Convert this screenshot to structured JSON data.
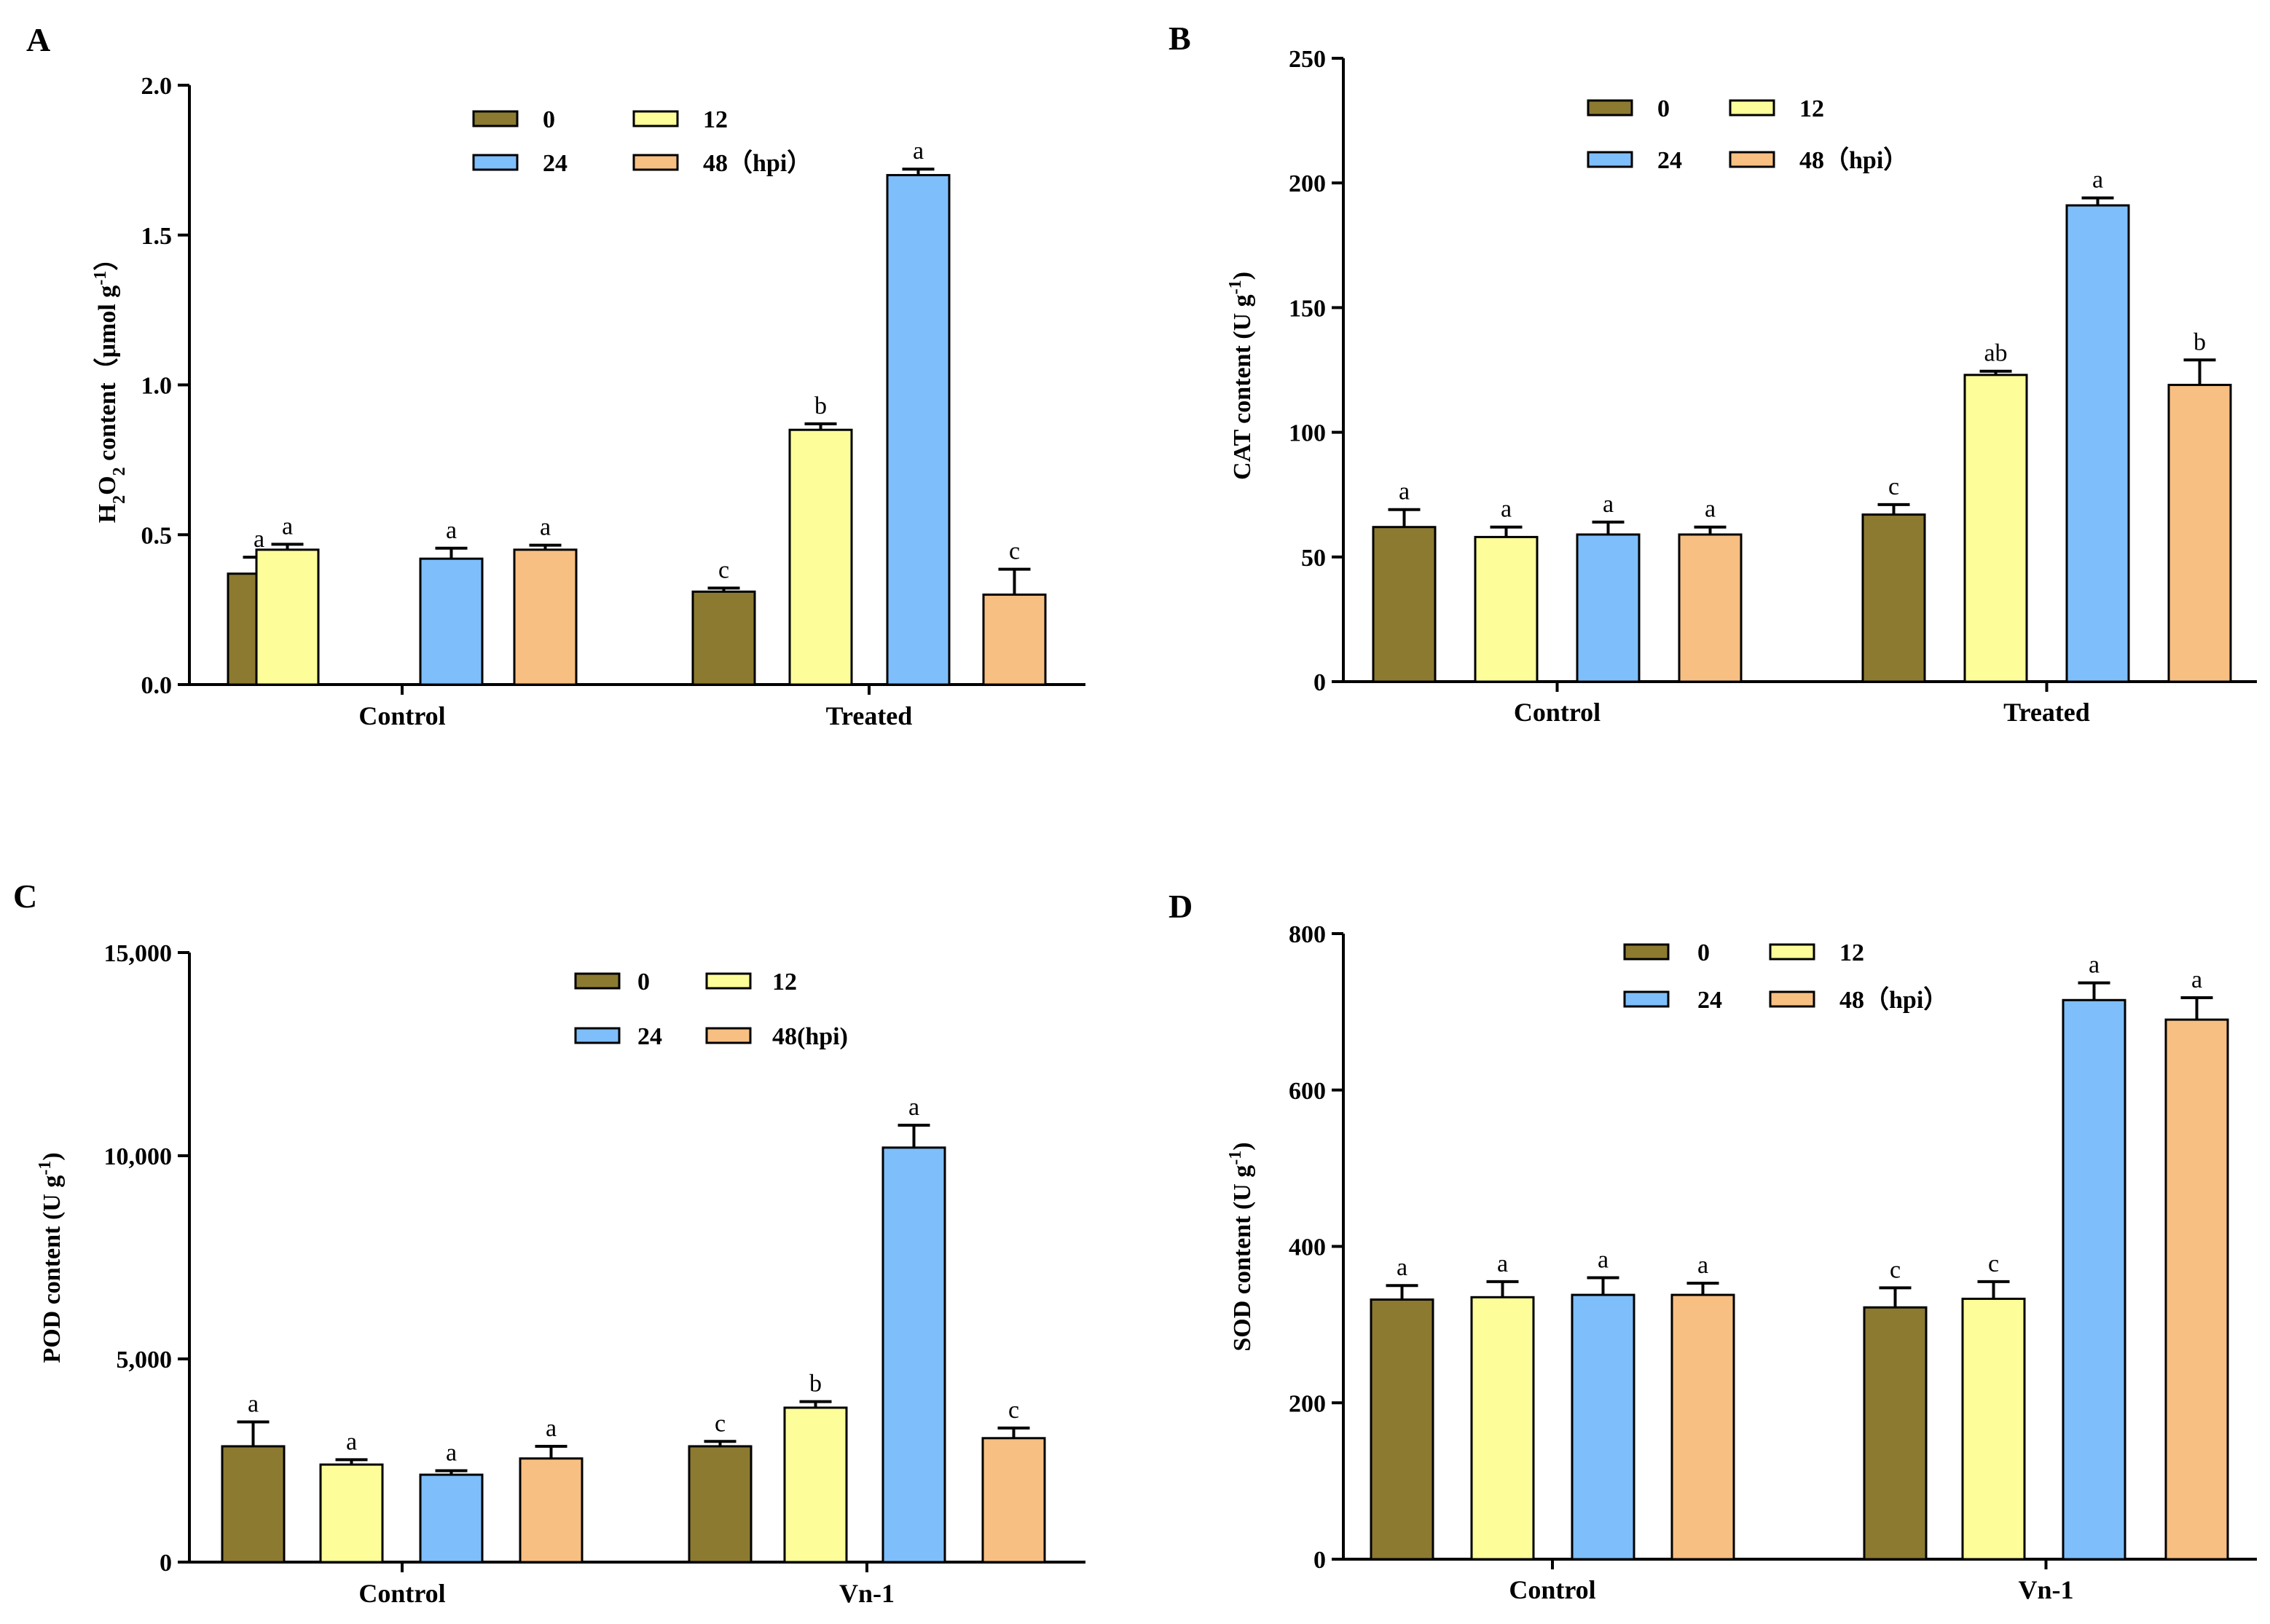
{
  "colors": {
    "0": "#8c7a30",
    "12": "#fdfd9a",
    "24": "#7ebefa",
    "48": "#f8bf82",
    "axis": "#000000"
  },
  "chart_data": [
    {
      "type": "bar",
      "panel": "A",
      "ylabel": {
        "prefix": "H",
        "sub": "2",
        "mid": "O",
        "sub2": "2",
        "main": " content（μmol g",
        "sup": "-1",
        "close": "）"
      },
      "ylim": [
        0,
        2.0
      ],
      "ytick_labels": [
        "0.0",
        "0.5",
        "1.0",
        "1.5",
        "2.0"
      ],
      "categories": [
        "Control",
        "Treated"
      ],
      "legend": [
        "0",
        "12",
        "24",
        "48（hpi）"
      ],
      "series": [
        {
          "name": "0",
          "values": [
            0.37,
            0.31
          ],
          "errors": [
            0.055,
            0.012
          ],
          "letters": [
            "a",
            "c"
          ]
        },
        {
          "name": "12",
          "values": [
            0.45,
            0.85
          ],
          "errors": [
            0.018,
            0.02
          ],
          "letters": [
            "a",
            "b"
          ]
        },
        {
          "name": "24",
          "values": [
            0.42,
            1.7
          ],
          "errors": [
            0.035,
            0.02
          ],
          "letters": [
            "a",
            "a"
          ]
        },
        {
          "name": "48",
          "values": [
            0.45,
            0.3
          ],
          "errors": [
            0.015,
            0.085
          ],
          "letters": [
            "a",
            "c"
          ]
        }
      ]
    },
    {
      "type": "bar",
      "panel": "B",
      "ylabel": {
        "main": "CAT content (U g",
        "sup": "-1",
        "close": ")"
      },
      "ylim": [
        0,
        250
      ],
      "ytick_labels": [
        "0",
        "50",
        "100",
        "150",
        "200",
        "250"
      ],
      "categories": [
        "Control",
        "Treated"
      ],
      "legend": [
        "0",
        "12",
        "24",
        "48（hpi）"
      ],
      "series": [
        {
          "name": "0",
          "values": [
            62,
            67
          ],
          "errors": [
            7,
            4
          ],
          "letters": [
            "a",
            "c"
          ]
        },
        {
          "name": "12",
          "values": [
            58,
            123
          ],
          "errors": [
            4,
            1.5
          ],
          "letters": [
            "a",
            "ab"
          ]
        },
        {
          "name": "24",
          "values": [
            59,
            191
          ],
          "errors": [
            5,
            3
          ],
          "letters": [
            "a",
            "a"
          ]
        },
        {
          "name": "48",
          "values": [
            59,
            119
          ],
          "errors": [
            3,
            10
          ],
          "letters": [
            "a",
            "b"
          ]
        }
      ]
    },
    {
      "type": "bar",
      "panel": "C",
      "ylabel": {
        "main": "POD content (U g",
        "sup": "-1",
        "close": ")"
      },
      "ylim": [
        0,
        15000
      ],
      "ytick_labels": [
        "0",
        "5,000",
        "10,000",
        "15,000"
      ],
      "categories": [
        "Control",
        "Vn-1"
      ],
      "legend": [
        "0",
        "12",
        "24",
        "48(hpi)"
      ],
      "series": [
        {
          "name": "0",
          "values": [
            2850,
            2850
          ],
          "errors": [
            600,
            120
          ],
          "letters": [
            "a",
            "c"
          ]
        },
        {
          "name": "12",
          "values": [
            2400,
            3800
          ],
          "errors": [
            120,
            150
          ],
          "letters": [
            "a",
            "b"
          ]
        },
        {
          "name": "24",
          "values": [
            2150,
            10200
          ],
          "errors": [
            100,
            550
          ],
          "letters": [
            "a",
            "a"
          ]
        },
        {
          "name": "48",
          "values": [
            2550,
            3050
          ],
          "errors": [
            300,
            250
          ],
          "letters": [
            "a",
            "c"
          ]
        }
      ]
    },
    {
      "type": "bar",
      "panel": "D",
      "ylabel": {
        "main": "SOD content (U g",
        "sup": "-1",
        "close": ")"
      },
      "ylim": [
        0,
        800
      ],
      "ytick_labels": [
        "0",
        "200",
        "400",
        "600",
        "800"
      ],
      "categories": [
        "Control",
        "Vn-1"
      ],
      "legend": [
        "0",
        "12",
        "24",
        "48（hpi）"
      ],
      "series": [
        {
          "name": "0",
          "values": [
            332,
            322
          ],
          "errors": [
            18,
            25
          ],
          "letters": [
            "a",
            "c"
          ]
        },
        {
          "name": "12",
          "values": [
            335,
            333
          ],
          "errors": [
            20,
            22
          ],
          "letters": [
            "a",
            "c"
          ]
        },
        {
          "name": "24",
          "values": [
            338,
            715
          ],
          "errors": [
            22,
            22
          ],
          "letters": [
            "a",
            "a"
          ]
        },
        {
          "name": "48",
          "values": [
            338,
            690
          ],
          "errors": [
            15,
            28
          ],
          "letters": [
            "a",
            "a"
          ]
        }
      ]
    }
  ]
}
